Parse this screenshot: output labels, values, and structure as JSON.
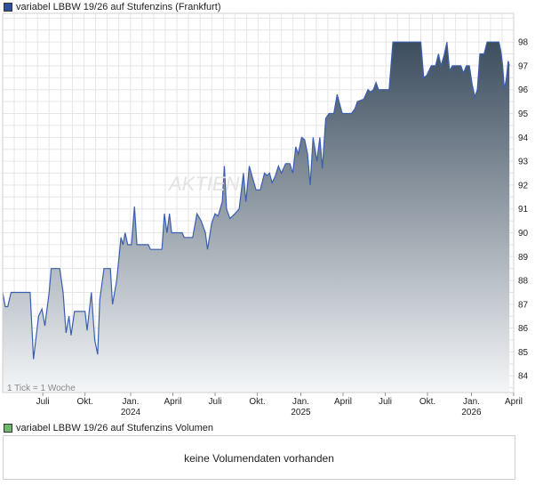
{
  "chart_data": {
    "type": "area",
    "title": "variabel LBBW 19/26 auf Stufenzins (Frankfurt)",
    "legend_color": "#2d4f9e",
    "line_color": "#3b5fb0",
    "fill_top_color": "#3c4d5e",
    "fill_bottom_color": "#f4f6f8",
    "ylim": [
      83.3,
      99.2
    ],
    "y_ticks": [
      84,
      85,
      86,
      87,
      88,
      89,
      90,
      91,
      92,
      93,
      94,
      95,
      96,
      97,
      98
    ],
    "x_range": [
      0,
      121
    ],
    "x_ticks": [
      {
        "pos": 9.5,
        "label": "Juli",
        "year": ""
      },
      {
        "pos": 19.5,
        "label": "Okt.",
        "year": ""
      },
      {
        "pos": 30.3,
        "label": "Jan.",
        "year": "2024"
      },
      {
        "pos": 40.3,
        "label": "April",
        "year": ""
      },
      {
        "pos": 50.3,
        "label": "Juli",
        "year": ""
      },
      {
        "pos": 60.3,
        "label": "Okt.",
        "year": ""
      },
      {
        "pos": 70.6,
        "label": "Jan.",
        "year": "2025"
      },
      {
        "pos": 80.6,
        "label": "April",
        "year": ""
      },
      {
        "pos": 90.6,
        "label": "Juli",
        "year": ""
      },
      {
        "pos": 100.6,
        "label": "Okt.",
        "year": ""
      },
      {
        "pos": 111.0,
        "label": "Jan.",
        "year": "2026"
      },
      {
        "pos": 121.0,
        "label": "April",
        "year": ""
      }
    ],
    "grid": true,
    "tick_note": "1 Tick = 1 Woche",
    "series": [
      {
        "values": [
          [
            0,
            87.5
          ],
          [
            0.6,
            86.9
          ],
          [
            1.2,
            86.9
          ],
          [
            2,
            87.5
          ],
          [
            6.5,
            87.5
          ],
          [
            7.3,
            84.7
          ],
          [
            8.5,
            86.5
          ],
          [
            9.3,
            86.8
          ],
          [
            10,
            86.1
          ],
          [
            11,
            87.5
          ],
          [
            11.5,
            88.5
          ],
          [
            13.5,
            88.5
          ],
          [
            14.3,
            87.5
          ],
          [
            15,
            85.8
          ],
          [
            15.7,
            86.5
          ],
          [
            16.2,
            85.7
          ],
          [
            17,
            86.7
          ],
          [
            19.5,
            86.7
          ],
          [
            20,
            85.9
          ],
          [
            21,
            87.5
          ],
          [
            21.8,
            85.5
          ],
          [
            22.5,
            84.9
          ],
          [
            23,
            87.2
          ],
          [
            24,
            88.5
          ],
          [
            25.5,
            88.5
          ],
          [
            26,
            87.0
          ],
          [
            27,
            88.0
          ],
          [
            28,
            89.8
          ],
          [
            28.5,
            89.5
          ],
          [
            29,
            90.0
          ],
          [
            29.6,
            89.5
          ],
          [
            30.5,
            89.5
          ],
          [
            31.2,
            91.1
          ],
          [
            31.8,
            89.5
          ],
          [
            34.5,
            89.5
          ],
          [
            35,
            89.3
          ],
          [
            37.7,
            89.3
          ],
          [
            38.3,
            90.8
          ],
          [
            38.9,
            90.0
          ],
          [
            39.5,
            90.8
          ],
          [
            40,
            90.0
          ],
          [
            42.5,
            90.0
          ],
          [
            43,
            89.8
          ],
          [
            45,
            89.8
          ],
          [
            46,
            90.8
          ],
          [
            47,
            90.5
          ],
          [
            48,
            90.0
          ],
          [
            48.5,
            89.3
          ],
          [
            49.5,
            90.4
          ],
          [
            50.3,
            90.8
          ],
          [
            51,
            90.7
          ],
          [
            52,
            91.3
          ],
          [
            52.5,
            92.8
          ],
          [
            53,
            91.0
          ],
          [
            53.8,
            90.6
          ],
          [
            55,
            90.8
          ],
          [
            56,
            91.0
          ],
          [
            57,
            92.5
          ],
          [
            57.6,
            91.3
          ],
          [
            58.4,
            92.8
          ],
          [
            59,
            92.4
          ],
          [
            60,
            91.8
          ],
          [
            61,
            91.8
          ],
          [
            62,
            92.5
          ],
          [
            62.6,
            92.4
          ],
          [
            63.2,
            92.5
          ],
          [
            63.8,
            92.1
          ],
          [
            64.6,
            92.4
          ],
          [
            65.3,
            92.8
          ],
          [
            66,
            92.5
          ],
          [
            67,
            92.9
          ],
          [
            68,
            92.9
          ],
          [
            68.7,
            92.5
          ],
          [
            69.4,
            93.6
          ],
          [
            70,
            93.3
          ],
          [
            70.8,
            94.0
          ],
          [
            71.5,
            93.9
          ],
          [
            72.2,
            93.3
          ],
          [
            72.8,
            92.0
          ],
          [
            73.5,
            94.0
          ],
          [
            74.4,
            93.0
          ],
          [
            75.1,
            94.0
          ],
          [
            75.7,
            92.7
          ],
          [
            76.5,
            94.8
          ],
          [
            77.3,
            95.0
          ],
          [
            78.4,
            95.0
          ],
          [
            79.2,
            95.8
          ],
          [
            79.8,
            95.4
          ],
          [
            80.4,
            95.0
          ],
          [
            82.6,
            95.0
          ],
          [
            83.4,
            95.2
          ],
          [
            84,
            95.5
          ],
          [
            85.5,
            95.6
          ],
          [
            86.5,
            96.0
          ],
          [
            87.1,
            95.9
          ],
          [
            87.8,
            96.0
          ],
          [
            88.4,
            96.3
          ],
          [
            89,
            96.0
          ],
          [
            91.5,
            96.0
          ],
          [
            92.4,
            98.0
          ],
          [
            99,
            98.0
          ],
          [
            99.7,
            96.5
          ],
          [
            100.4,
            96.6
          ],
          [
            101.5,
            97.0
          ],
          [
            102.5,
            97.0
          ],
          [
            103.2,
            97.5
          ],
          [
            103.8,
            97.0
          ],
          [
            104.6,
            97.5
          ],
          [
            105.2,
            98.0
          ],
          [
            105.8,
            96.8
          ],
          [
            106.5,
            97.0
          ],
          [
            108.5,
            97.0
          ],
          [
            109.1,
            96.7
          ],
          [
            109.8,
            97.0
          ],
          [
            110.5,
            97.0
          ],
          [
            111.2,
            96.2
          ],
          [
            111.8,
            95.7
          ],
          [
            112.4,
            96.0
          ],
          [
            113,
            97.5
          ],
          [
            114,
            97.5
          ],
          [
            114.7,
            98.0
          ],
          [
            117.5,
            98.0
          ],
          [
            118,
            97.6
          ],
          [
            118.4,
            97.0
          ],
          [
            118.8,
            96.0
          ],
          [
            119.3,
            96.5
          ],
          [
            119.7,
            97.2
          ],
          [
            120,
            97.0
          ]
        ]
      }
    ],
    "volume": {
      "legend": "variabel LBBW 19/26 auf Stufenzins Volumen",
      "legend_color": "#6db86d",
      "message": "keine Volumendaten vorhanden"
    }
  }
}
